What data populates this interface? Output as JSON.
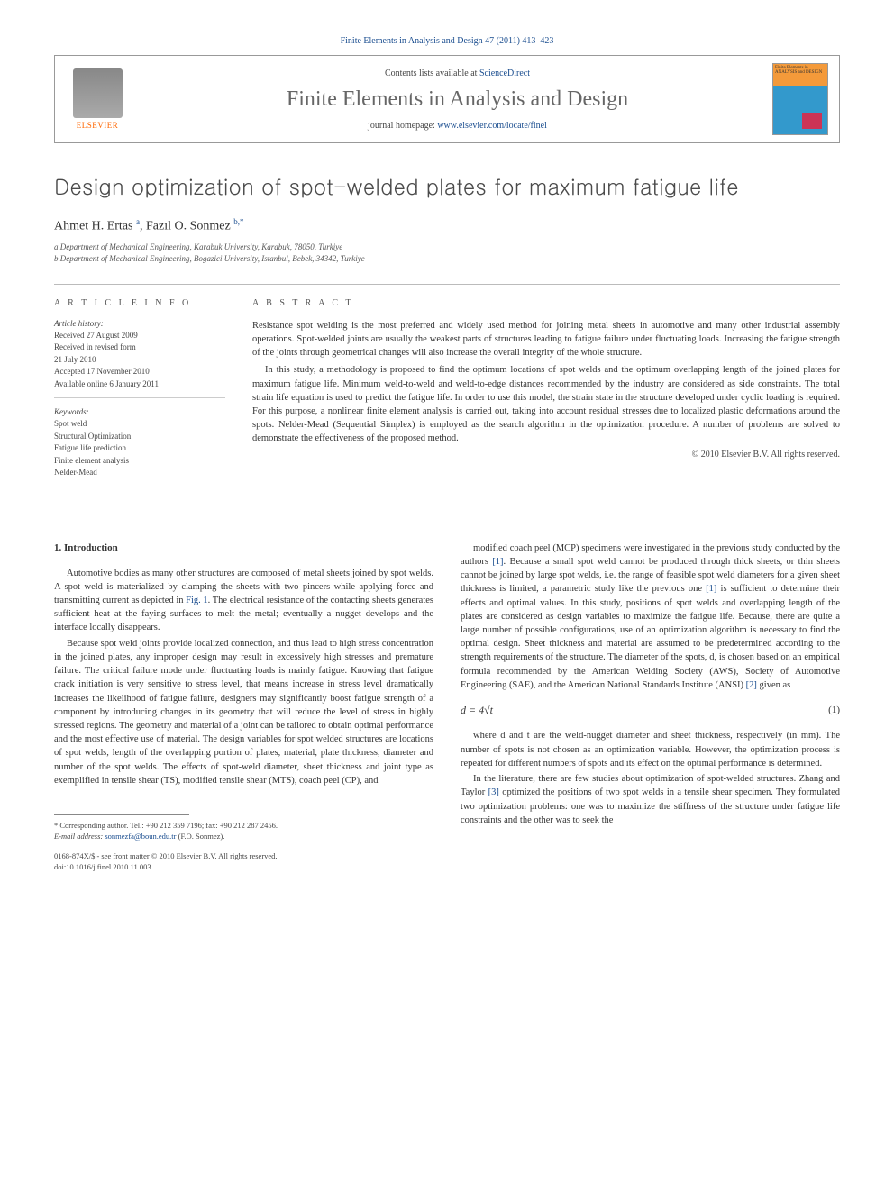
{
  "journal_ref": "Finite Elements in Analysis and Design 47 (2011) 413–423",
  "header": {
    "contents_prefix": "Contents lists available at ",
    "contents_link": "ScienceDirect",
    "journal_name": "Finite Elements in Analysis and Design",
    "homepage_prefix": "journal homepage: ",
    "homepage_link": "www.elsevier.com/locate/finel",
    "publisher": "ELSEVIER",
    "cover_title": "Finite Elements in ANALYSIS and DESIGN"
  },
  "title": "Design optimization of spot-welded plates for maximum fatigue life",
  "authors_html": "Ahmet H. Ertas <sup>a</sup>, Fazıl O. Sonmez <sup>b,*</sup>",
  "affiliations": [
    "a Department of Mechanical Engineering, Karabuk University, Karabuk, 78050, Turkiye",
    "b Department of Mechanical Engineering, Bogazici University, Istanbul, Bebek, 34342, Turkiye"
  ],
  "article_info": {
    "heading": "A R T I C L E  I N F O",
    "history_label": "Article history:",
    "history": [
      "Received 27 August 2009",
      "Received in revised form",
      "21 July 2010",
      "Accepted 17 November 2010",
      "Available online 6 January 2011"
    ],
    "keywords_label": "Keywords:",
    "keywords": [
      "Spot weld",
      "Structural Optimization",
      "Fatigue life prediction",
      "Finite element analysis",
      "Nelder-Mead"
    ]
  },
  "abstract": {
    "heading": "A B S T R A C T",
    "paragraphs": [
      "Resistance spot welding is the most preferred and widely used method for joining metal sheets in automotive and many other industrial assembly operations. Spot-welded joints are usually the weakest parts of structures leading to fatigue failure under fluctuating loads. Increasing the fatigue strength of the joints through geometrical changes will also increase the overall integrity of the whole structure.",
      "In this study, a methodology is proposed to find the optimum locations of spot welds and the optimum overlapping length of the joined plates for maximum fatigue life. Minimum weld-to-weld and weld-to-edge distances recommended by the industry are considered as side constraints. The total strain life equation is used to predict the fatigue life. In order to use this model, the strain state in the structure developed under cyclic loading is required. For this purpose, a nonlinear finite element analysis is carried out, taking into account residual stresses due to localized plastic deformations around the spots. Nelder-Mead (Sequential Simplex) is employed as the search algorithm in the optimization procedure. A number of problems are solved to demonstrate the effectiveness of the proposed method."
    ],
    "copyright": "© 2010 Elsevier B.V. All rights reserved."
  },
  "body": {
    "section_number": "1.",
    "section_title": "Introduction",
    "left_paragraphs": [
      "Automotive bodies as many other structures are composed of metal sheets joined by spot welds. A spot weld is materialized by clamping the sheets with two pincers while applying force and transmitting current as depicted in Fig. 1. The electrical resistance of the contacting sheets generates sufficient heat at the faying surfaces to melt the metal; eventually a nugget develops and the interface locally disappears.",
      "Because spot weld joints provide localized connection, and thus lead to high stress concentration in the joined plates, any improper design may result in excessively high stresses and premature failure. The critical failure mode under fluctuating loads is mainly fatigue. Knowing that fatigue crack initiation is very sensitive to stress level, that means increase in stress level dramatically increases the likelihood of fatigue failure, designers may significantly boost fatigue strength of a component by introducing changes in its geometry that will reduce the level of stress in highly stressed regions. The geometry and material of a joint can be tailored to obtain optimal performance and the most effective use of material. The design variables for spot welded structures are locations of spot welds, length of the overlapping portion of plates, material, plate thickness, diameter and number of the spot welds. The effects of spot-weld diameter, sheet thickness and joint type as exemplified in tensile shear (TS), modified tensile shear (MTS), coach peel (CP), and"
    ],
    "right_paragraphs_pre_eq": [
      "modified coach peel (MCP) specimens were investigated in the previous study conducted by the authors [1]. Because a small spot weld cannot be produced through thick sheets, or thin sheets cannot be joined by large spot welds, i.e. the range of feasible spot weld diameters for a given sheet thickness is limited, a parametric study like the previous one [1] is sufficient to determine their effects and optimal values. In this study, positions of spot welds and overlapping length of the plates are considered as design variables to maximize the fatigue life. Because, there are quite a large number of possible configurations, use of an optimization algorithm is necessary to find the optimal design. Sheet thickness and material are assumed to be predetermined according to the strength requirements of the structure. The diameter of the spots, d, is chosen based on an empirical formula recommended by the American Welding Society (AWS), Society of Automotive Engineering (SAE), and the American National Standards Institute (ANSI) [2] given as"
    ],
    "equation": "d = 4√t",
    "equation_number": "(1)",
    "right_paragraphs_post_eq": [
      "where d and t are the weld-nugget diameter and sheet thickness, respectively (in mm). The number of spots is not chosen as an optimization variable. However, the optimization process is repeated for different numbers of spots and its effect on the optimal performance is determined.",
      "In the literature, there are few studies about optimization of spot-welded structures. Zhang and Taylor [3] optimized the positions of two spot welds in a tensile shear specimen. They formulated two optimization problems: one was to maximize the stiffness of the structure under fatigue life constraints and the other was to seek the"
    ]
  },
  "footnote": {
    "corr": "* Corresponding author. Tel.: +90 212 359 7196; fax: +90 212 287 2456.",
    "email_label": "E-mail address:",
    "email": "sonmezfa@boun.edu.tr",
    "email_suffix": "(F.O. Sonmez)."
  },
  "doi": {
    "line1": "0168-874X/$ - see front matter © 2010 Elsevier B.V. All rights reserved.",
    "line2": "doi:10.1016/j.finel.2010.11.003"
  },
  "colors": {
    "link": "#1a4d8f",
    "publisher": "#ff6600",
    "text": "#333333",
    "rule": "#bbbbbb"
  }
}
